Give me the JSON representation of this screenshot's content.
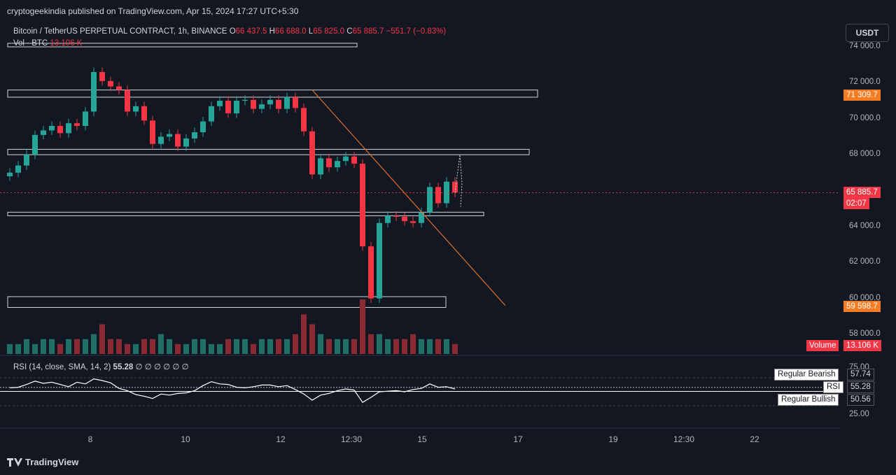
{
  "header": {
    "publisher": "cryptogeekindia published on TradingView.com, Apr 15, 2024 17:27 UTC+5:30",
    "symbol": "Bitcoin / TetherUS PERPETUAL CONTRACT, 1h, BINANCE",
    "open_label": "O",
    "open": "66 437.5",
    "high_label": "H",
    "high": "66 688.0",
    "low_label": "L",
    "low": "65 825.0",
    "close_label": "C",
    "close": "65 885.7",
    "change": "−551.7 (−0.83%)",
    "vol_label": "Vol · BTC",
    "vol_value": "13.106 K",
    "currency_button": "USDT"
  },
  "rsi_legend": {
    "label": "RSI (14, close, SMA, 14, 2)",
    "value": "55.28",
    "extra": "∅ ∅ ∅ ∅ ∅ ∅"
  },
  "price_axis": [
    "74 000.0",
    "72 000.0",
    "70 000.0",
    "68 000.0",
    "64 000.0",
    "62 000.0",
    "60 000.0",
    "58 000.0"
  ],
  "rsi_axis": [
    "75.00",
    "25.00"
  ],
  "tags": {
    "level_top": "71 309.7",
    "last_price": "65 885.7",
    "countdown": "02:07",
    "level_bottom": "59 598.7",
    "volume_label": "Volume",
    "volume_value": "13.106 K"
  },
  "rsi_tags": {
    "bearish_label": "Regular Bearish",
    "bearish_value": "57.74",
    "rsi_label": "RSI",
    "rsi_value": "55.28",
    "bullish_label": "Regular Bullish",
    "bullish_value": "50.56"
  },
  "time_axis": [
    "8",
    "10",
    "12",
    "12:30",
    "15",
    "17",
    "19",
    "12:30",
    "22"
  ],
  "footer": {
    "brand": "TradingView"
  },
  "colors": {
    "up": "#26a69a",
    "down": "#f23645",
    "background": "#131722",
    "trendline": "#e0702a",
    "tag_orange": "#f57c22",
    "tag_red": "#f23645"
  },
  "chart_data": {
    "type": "candlestick",
    "symbol": "BTCUSDT.P",
    "interval": "1h",
    "ylim": [
      57000,
      74800
    ],
    "zones": [
      {
        "from": 74000,
        "to": 74200,
        "end_x_label": "12"
      },
      {
        "from": 71200,
        "to": 71600
      },
      {
        "from": 68000,
        "to": 68300
      },
      {
        "from": 64600,
        "to": 64800
      },
      {
        "from": 59500,
        "to": 60100
      }
    ],
    "trendline": {
      "from_price": 71600,
      "to_price": 59600
    },
    "last_price": 65885.7,
    "price_series": [
      67000,
      67400,
      68000,
      69100,
      69350,
      69600,
      69200,
      69750,
      69600,
      70400,
      72600,
      72100,
      71800,
      71600,
      70400,
      70700,
      69900,
      68600,
      69000,
      69150,
      68450,
      68900,
      69250,
      69850,
      70700,
      71000,
      70300,
      71000,
      71050,
      70550,
      70800,
      71050,
      70550,
      71200,
      70600,
      69300,
      66900,
      67800,
      67300,
      67650,
      67900,
      67500,
      62900,
      60000,
      64200,
      64600,
      64550,
      64300,
      64200,
      64800,
      66200,
      65300,
      66500,
      65900
    ],
    "volume_series": [
      2,
      2,
      3,
      2,
      3,
      3,
      2,
      3,
      3,
      3,
      4,
      6,
      3,
      3,
      2,
      2,
      3,
      3,
      4,
      3,
      2,
      2,
      3,
      3,
      2,
      2,
      3,
      3,
      3,
      2,
      3,
      3,
      3,
      3,
      4,
      8,
      6,
      4,
      3,
      3,
      3,
      3,
      11,
      4,
      4,
      3,
      3,
      3,
      4,
      3,
      3,
      3,
      3,
      2
    ],
    "rsi_series": [
      57,
      58,
      63,
      69,
      65,
      67,
      63,
      59,
      67,
      64,
      73,
      70,
      66,
      56,
      52,
      45,
      42,
      38,
      46,
      44,
      47,
      48,
      52,
      61,
      68,
      64,
      63,
      58,
      57,
      59,
      62,
      62,
      59,
      61,
      54,
      46,
      35,
      44,
      47,
      52,
      55,
      53,
      31,
      40,
      50,
      51,
      52,
      50,
      54,
      56,
      64,
      58,
      59,
      55
    ],
    "rsi_ylim": [
      0,
      100
    ],
    "rsi_levels": {
      "upper": 75,
      "lower": 25
    }
  }
}
